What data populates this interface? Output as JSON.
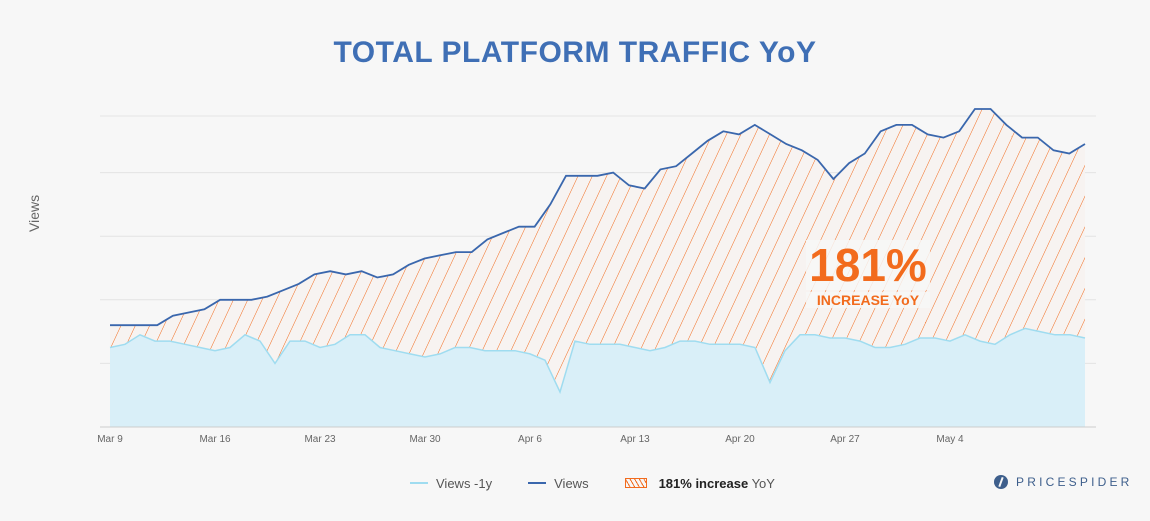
{
  "chart_data": {
    "type": "area",
    "title": "TOTAL PLATFORM TRAFFIC YoY",
    "ylabel": "Views",
    "xlabel": "",
    "x_start": "Mar 9",
    "x_ticks": [
      "Mar 9",
      "Mar 16",
      "Mar 23",
      "Mar 30",
      "Apr 6",
      "Apr 13",
      "Apr 20",
      "Apr 27",
      "May 4"
    ],
    "ylim": [
      0,
      100
    ],
    "grid": true,
    "legend_position": "bottom-center",
    "series": [
      {
        "name": "Views -1y",
        "color": "#9fdcf0",
        "fill": "#d9eff8",
        "values": [
          25,
          26,
          29,
          27,
          27,
          26,
          25,
          24,
          25,
          29,
          27,
          20,
          27,
          27,
          25,
          26,
          29,
          29,
          25,
          24,
          23,
          22,
          23,
          25,
          25,
          24,
          24,
          24,
          23,
          21,
          11,
          27,
          26,
          26,
          26,
          25,
          24,
          25,
          27,
          27,
          26,
          26,
          26,
          25,
          14,
          24,
          29,
          29,
          28,
          28,
          27,
          25,
          25,
          26,
          28,
          28,
          27,
          29,
          27,
          26,
          29,
          31,
          30,
          29,
          29,
          28
        ]
      },
      {
        "name": "Views",
        "color": "#3a67ad",
        "values": [
          32,
          32,
          32,
          32,
          35,
          36,
          37,
          40,
          40,
          40,
          41,
          43,
          45,
          48,
          49,
          48,
          49,
          47,
          48,
          51,
          53,
          54,
          55,
          55,
          59,
          61,
          63,
          63,
          70,
          79,
          79,
          79,
          80,
          76,
          75,
          81,
          82,
          86,
          90,
          93,
          92,
          95,
          92,
          89,
          87,
          84,
          78,
          83,
          86,
          93,
          95,
          95,
          92,
          91,
          93,
          100,
          100,
          95,
          91,
          91,
          87,
          86,
          89
        ]
      }
    ],
    "annotation": {
      "value": "181%",
      "text": "INCREASE YoY"
    },
    "legend": [
      {
        "type": "line",
        "label": "Views -1y",
        "color": "#9fdcf0"
      },
      {
        "type": "line",
        "label": "Views",
        "color": "#3a67ad"
      },
      {
        "type": "hatch",
        "label_bold": "181% increase",
        "label_rest": " YoY",
        "color": "#f26b1d"
      }
    ]
  },
  "brand": {
    "logo_text": "PRICESPIDER"
  }
}
